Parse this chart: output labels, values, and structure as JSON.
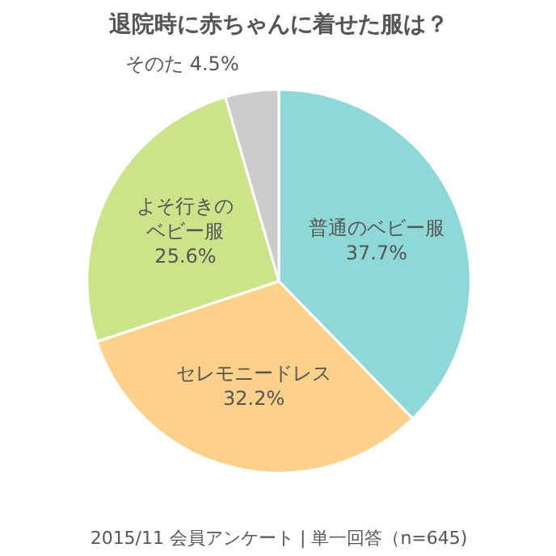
{
  "chart_data": {
    "type": "pie",
    "title": "退院時に赤ちゃんに着せた服は？",
    "categories": [
      "普通のベビー服",
      "セレモニードレス",
      "よそ行きのベビー服",
      "そのた"
    ],
    "values": [
      37.7,
      32.2,
      25.6,
      4.5
    ],
    "value_labels": [
      "37.7%",
      "32.2%",
      "25.6%",
      "4.5%"
    ],
    "colors": [
      "#8ed9d8",
      "#fdd18a",
      "#cde38a",
      "#cccccc"
    ],
    "annotations": [
      "2015/11 会員アンケート | 単一回答（n=645)"
    ]
  }
}
